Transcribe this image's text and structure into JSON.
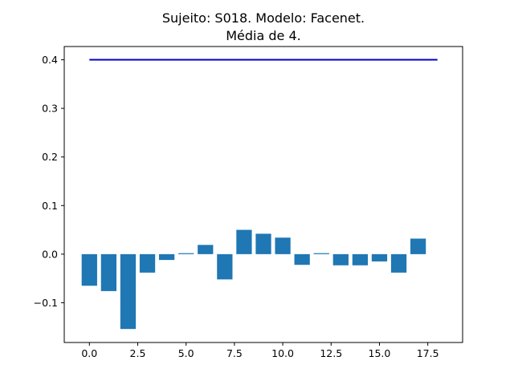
{
  "chart_data": {
    "type": "bar",
    "title_lines": [
      "Sujeito: S018. Modelo: Facenet.",
      "Média de 4."
    ],
    "xlabel": "",
    "ylabel": "",
    "x": [
      0,
      1,
      2,
      3,
      4,
      5,
      6,
      7,
      8,
      9,
      10,
      11,
      12,
      13,
      14,
      15,
      16,
      17
    ],
    "values": [
      -0.065,
      -0.076,
      -0.154,
      -0.038,
      -0.012,
      0.002,
      0.019,
      -0.052,
      0.05,
      0.042,
      0.034,
      -0.022,
      0.002,
      -0.023,
      -0.023,
      -0.015,
      -0.038,
      0.032
    ],
    "bar_color": "#1f77b4",
    "reference_line": {
      "x_start": 0,
      "x_end": 18,
      "y": 0.4,
      "color": "#0000cc"
    },
    "xlim": [
      -1.3,
      19.3
    ],
    "ylim": [
      -0.1818,
      0.4273
    ],
    "xticks": [
      0.0,
      2.5,
      5.0,
      7.5,
      10.0,
      12.5,
      15.0,
      17.5
    ],
    "xtick_labels": [
      "0.0",
      "2.5",
      "5.0",
      "7.5",
      "10.0",
      "12.5",
      "15.0",
      "17.5"
    ],
    "yticks": [
      -0.1,
      0.0,
      0.1,
      0.2,
      0.3,
      0.4
    ],
    "ytick_labels": [
      "−0.1",
      "0.0",
      "0.1",
      "0.2",
      "0.3",
      "0.4"
    ],
    "grid": false,
    "legend": "none"
  }
}
